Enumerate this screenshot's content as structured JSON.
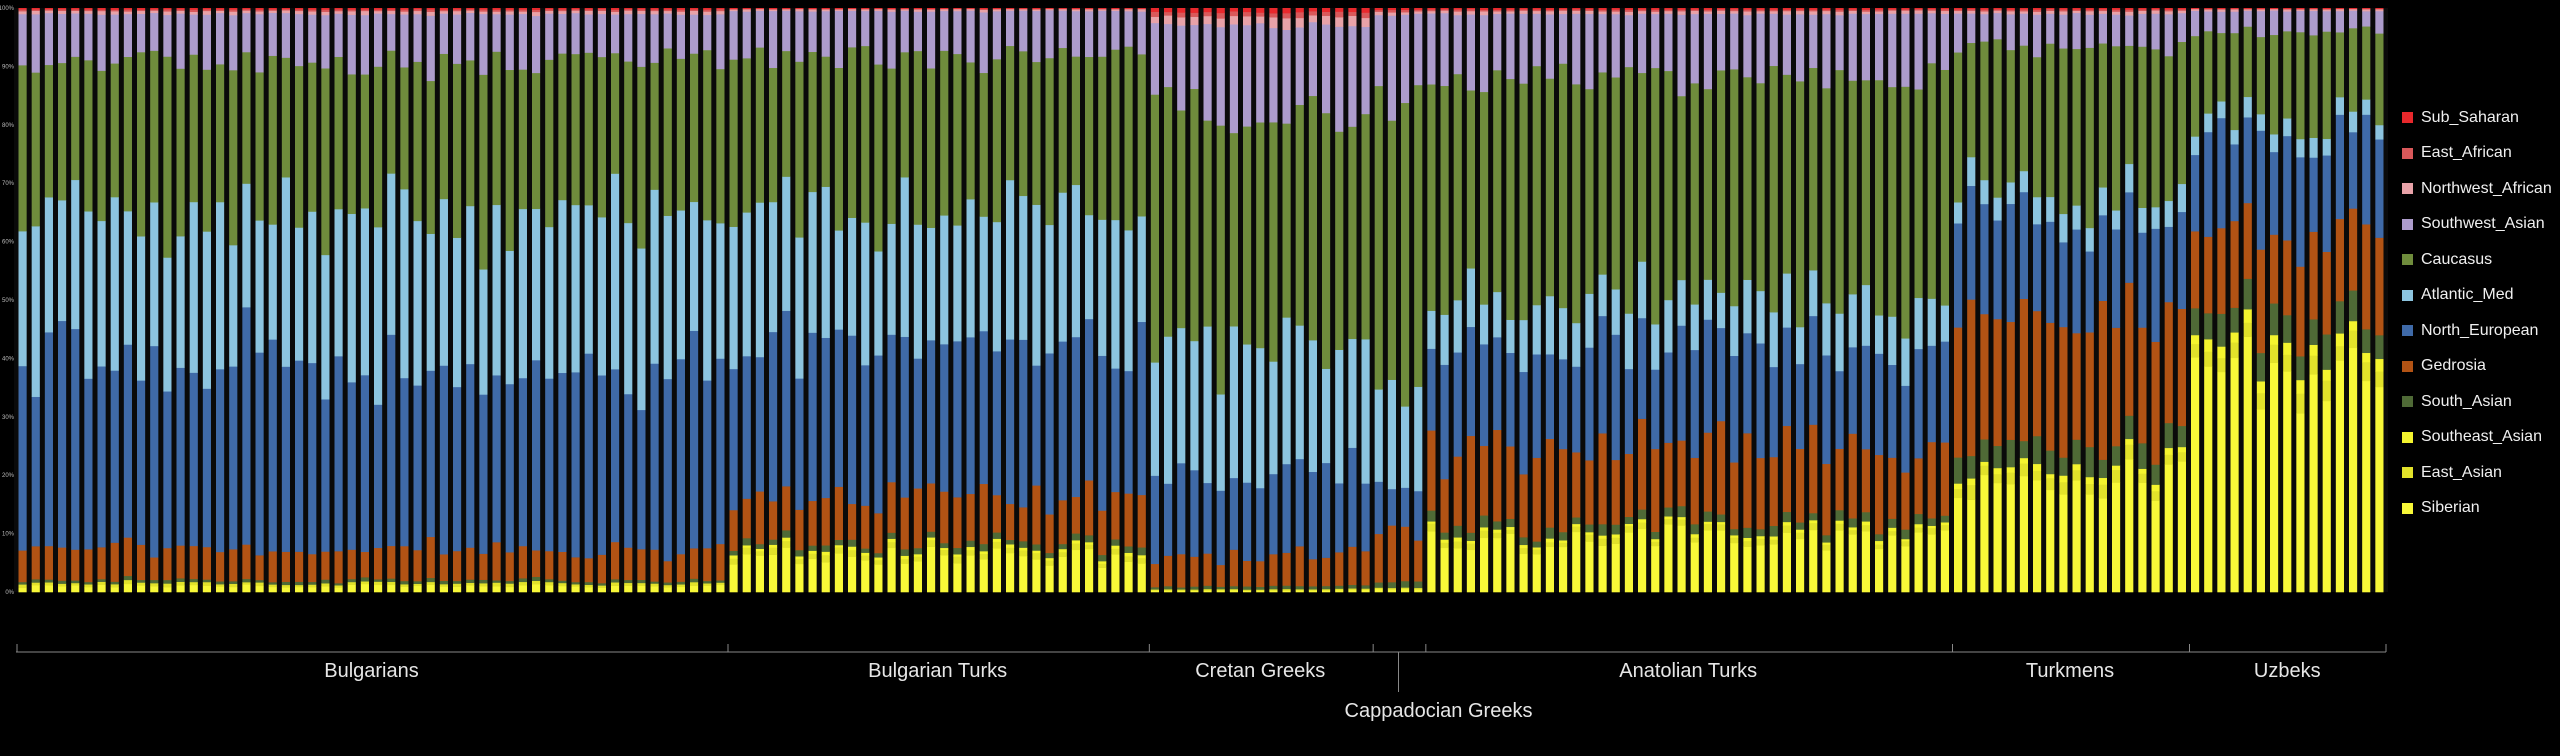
{
  "chart_data": {
    "type": "bar",
    "stacked": true,
    "normalized": true,
    "ylim": [
      0,
      100
    ],
    "yticks": [
      "0%",
      "10%",
      "20%",
      "30%",
      "40%",
      "50%",
      "60%",
      "70%",
      "80%",
      "90%",
      "100%"
    ],
    "series_order_bottom_to_top": [
      "Siberian",
      "East_Asian",
      "Southeast_Asian",
      "South_Asian",
      "Gedrosia",
      "North_European",
      "Atlantic_Med",
      "Caucasus",
      "Southwest_Asian",
      "Northwest_African",
      "East_African",
      "Sub_Saharan"
    ],
    "legend": {
      "position": "right",
      "entries": [
        {
          "key": "Sub_Saharan",
          "label": "Sub_Saharan",
          "color": "#e8282c"
        },
        {
          "key": "East_African",
          "label": "East_African",
          "color": "#d9585a"
        },
        {
          "key": "Northwest_African",
          "label": "Northwest_African",
          "color": "#e8a2a8"
        },
        {
          "key": "Southwest_Asian",
          "label": "Southwest_Asian",
          "color": "#ad9ccc"
        },
        {
          "key": "Caucasus",
          "label": "Caucasus",
          "color": "#6f8c3c"
        },
        {
          "key": "Atlantic_Med",
          "label": "Atlantic_Med",
          "color": "#8cc4df"
        },
        {
          "key": "North_European",
          "label": "North_European",
          "color": "#3f6aa8"
        },
        {
          "key": "Gedrosia",
          "label": "Gedrosia",
          "color": "#b25314"
        },
        {
          "key": "South_Asian",
          "label": "South_Asian",
          "color": "#4f6a36"
        },
        {
          "key": "Southeast_Asian",
          "label": "Southeast_Asian",
          "color": "#f4f42e"
        },
        {
          "key": "East_Asian",
          "label": "East_Asian",
          "color": "#e2e22a"
        },
        {
          "key": "Siberian",
          "label": "Siberian",
          "color": "#f8f838"
        }
      ]
    },
    "groups": [
      {
        "name": "Bulgarians",
        "count": 54,
        "profile": {
          "Siberian": 1,
          "East_Asian": 0.5,
          "Southeast_Asian": 0,
          "South_Asian": 0.5,
          "Gedrosia": 5,
          "North_European": 32,
          "Atlantic_Med": 26,
          "Caucasus": 26,
          "Southwest_Asian": 8,
          "Northwest_African": 0.5,
          "East_African": 0.3,
          "Sub_Saharan": 0.2
        }
      },
      {
        "name": "Bulgarian Turks",
        "count": 32,
        "profile": {
          "Siberian": 6,
          "East_Asian": 1,
          "Southeast_Asian": 0.5,
          "South_Asian": 1,
          "Gedrosia": 8,
          "North_European": 26,
          "Atlantic_Med": 22,
          "Caucasus": 27,
          "Southwest_Asian": 8,
          "Northwest_African": 0.3,
          "East_African": 0.1,
          "Sub_Saharan": 0.1
        }
      },
      {
        "name": "Cretan Greeks",
        "count": 17,
        "profile": {
          "Siberian": 0.3,
          "East_Asian": 0.2,
          "Southeast_Asian": 0,
          "South_Asian": 0.5,
          "Gedrosia": 5,
          "North_European": 14,
          "Atlantic_Med": 22,
          "Caucasus": 40,
          "Southwest_Asian": 15,
          "Northwest_African": 1.5,
          "East_African": 0.8,
          "Sub_Saharan": 0.7
        }
      },
      {
        "name": "Cappadocian Greeks",
        "count": 4,
        "profile": {
          "Siberian": 0.5,
          "East_Asian": 0.3,
          "Southeast_Asian": 0,
          "South_Asian": 1,
          "Gedrosia": 9,
          "North_European": 8,
          "Atlantic_Med": 16,
          "Caucasus": 48,
          "Southwest_Asian": 16,
          "Northwest_African": 0.5,
          "East_African": 0.4,
          "Sub_Saharan": 0.3
        }
      },
      {
        "name": "Anatolian Turks",
        "count": 40,
        "profile": {
          "Siberian": 9,
          "East_Asian": 1,
          "Southeast_Asian": 0.5,
          "South_Asian": 1.5,
          "Gedrosia": 13,
          "North_European": 17,
          "Atlantic_Med": 8,
          "Caucasus": 38,
          "Southwest_Asian": 11,
          "Northwest_African": 0.5,
          "East_African": 0.3,
          "Sub_Saharan": 0.2
        }
      },
      {
        "name": "Turkmens",
        "count": 18,
        "profile": {
          "Siberian": 19,
          "East_Asian": 2,
          "Southeast_Asian": 1,
          "South_Asian": 4,
          "Gedrosia": 22,
          "North_European": 17,
          "Atlantic_Med": 4,
          "Caucasus": 24,
          "Southwest_Asian": 6,
          "Northwest_African": 0.5,
          "East_African": 0.3,
          "Sub_Saharan": 0.2
        }
      },
      {
        "name": "Uzbeks",
        "count": 15,
        "profile": {
          "Siberian": 36,
          "East_Asian": 3,
          "Southeast_Asian": 2,
          "South_Asian": 5,
          "Gedrosia": 16,
          "North_European": 16,
          "Atlantic_Med": 3,
          "Caucasus": 15,
          "Southwest_Asian": 3.5,
          "Northwest_African": 0.3,
          "East_African": 0.1,
          "Sub_Saharan": 0.1
        }
      }
    ]
  }
}
